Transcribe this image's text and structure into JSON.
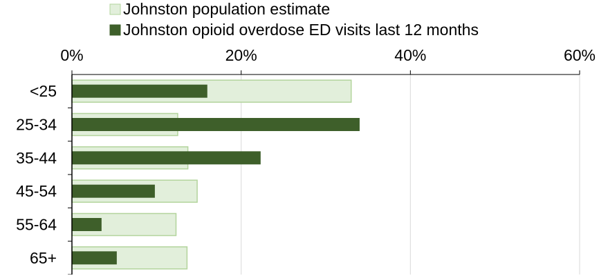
{
  "chart_data": {
    "type": "bar",
    "orientation": "horizontal",
    "title": "",
    "categories": [
      "<25",
      "25-34",
      "35-44",
      "45-54",
      "55-64",
      "65+"
    ],
    "series": [
      {
        "name": "Johnston population estimate",
        "values": [
          33,
          12.5,
          13.7,
          14.8,
          12.3,
          13.6
        ],
        "color": "#e2efdb",
        "stroke": "#b3d49c"
      },
      {
        "name": "Johnston opioid overdose ED visits last 12 months",
        "values": [
          16,
          34,
          22.3,
          9.8,
          3.5,
          5.3
        ],
        "color": "#3e5f2a"
      }
    ],
    "xlim": [
      0,
      60
    ],
    "xticks": [
      0,
      20,
      40,
      60
    ],
    "xtick_labels": [
      "0%",
      "20%",
      "40%",
      "60%"
    ],
    "xaxis_position": "top",
    "legend_position": "top",
    "grid": true
  }
}
